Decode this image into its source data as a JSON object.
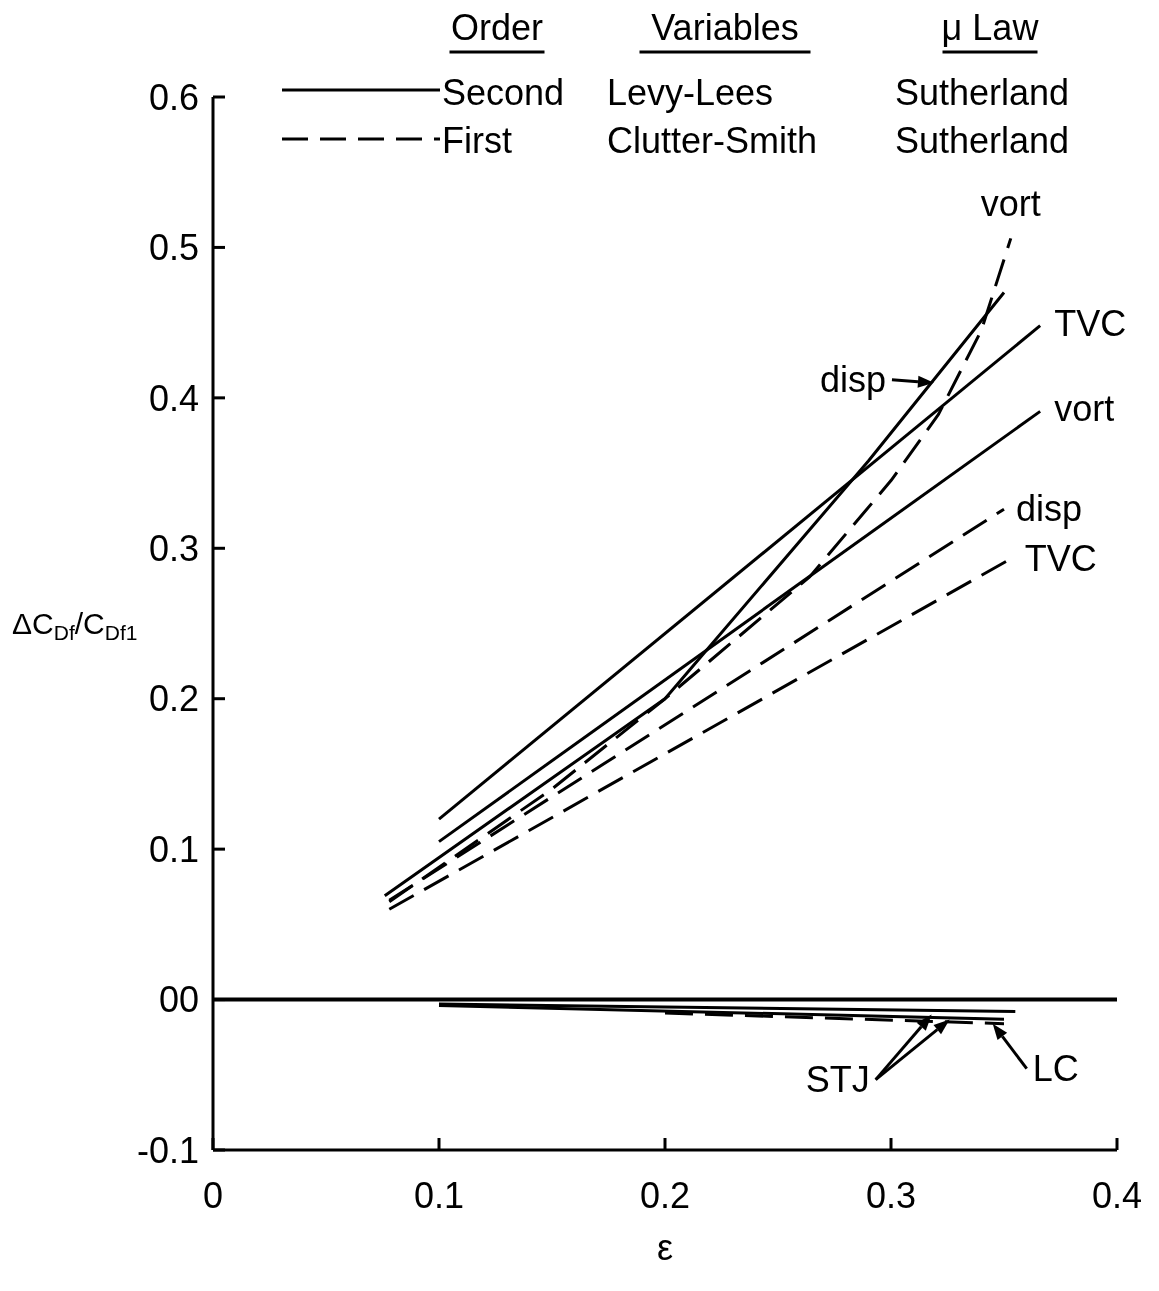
{
  "chart_data": {
    "type": "line",
    "xlabel": "ε",
    "ylabel": "ΔC$_{Df}$/C$_{Df1}$",
    "xlim": [
      0,
      0.4
    ],
    "xticks": [
      0,
      0.1,
      0.2,
      0.3,
      0.4
    ],
    "ylim": [
      -0.1,
      0.6
    ],
    "yticks": [
      -0.1,
      {
        "value": 0,
        "label": "00"
      },
      0.1,
      0.2,
      0.3,
      0.4,
      0.5,
      0.6
    ],
    "ref_lines": [
      {
        "axis": "y",
        "value": 0,
        "color": "#000000"
      }
    ],
    "series": [
      {
        "line_style": "solid",
        "color": "#000000",
        "x": [
          0.1,
          0.366
        ],
        "values": [
          0.12,
          0.448
        ]
      },
      {
        "line_style": "solid",
        "color": "#000000",
        "x": [
          0.1,
          0.366
        ],
        "values": [
          0.105,
          0.391
        ]
      },
      {
        "line_style": "solid",
        "color": "#000000",
        "x": [
          0.076,
          0.2,
          0.29,
          0.35
        ],
        "values": [
          0.069,
          0.2,
          0.358,
          0.47
        ]
      },
      {
        "line_style": "dashed",
        "color": "#000000",
        "x": [
          0.078,
          0.15,
          0.2,
          0.264,
          0.3,
          0.321,
          0.34,
          0.353
        ],
        "values": [
          0.065,
          0.14,
          0.2,
          0.281,
          0.345,
          0.389,
          0.445,
          0.506
        ]
      },
      {
        "line_style": "dashed",
        "color": "#000000",
        "x": [
          0.078,
          0.35
        ],
        "values": [
          0.066,
          0.326
        ]
      },
      {
        "line_style": "dashed",
        "color": "#000000",
        "x": [
          0.078,
          0.353
        ],
        "values": [
          0.06,
          0.293
        ]
      },
      {
        "line_style": "solid",
        "color": "#000000",
        "x": [
          0.1,
          0.355
        ],
        "values": [
          -0.003,
          -0.008
        ]
      },
      {
        "line_style": "solid",
        "color": "#000000",
        "x": [
          0.1,
          0.35
        ],
        "values": [
          -0.004,
          -0.013
        ]
      },
      {
        "line_style": "dashed",
        "color": "#000000",
        "x": [
          0.2,
          0.35
        ],
        "values": [
          -0.009,
          -0.016
        ]
      }
    ],
    "annotations": [
      {
        "text": "vort",
        "x": 0.353,
        "y": 0.506
      },
      {
        "text": "TVC",
        "x": 0.366,
        "y": 0.448
      },
      {
        "text": "disp",
        "x": 0.319,
        "y": 0.412
      },
      {
        "text": "vort",
        "x": 0.366,
        "y": 0.391
      },
      {
        "text": "disp",
        "x": 0.35,
        "y": 0.326
      },
      {
        "text": "TVC",
        "x": 0.353,
        "y": 0.293
      },
      {
        "text": "STJ",
        "x": 0.318,
        "y": -0.008
      },
      {
        "text": "LC",
        "x": 0.345,
        "y": -0.014
      },
      "Order",
      "Variables",
      "μ Law",
      "Second",
      "Levy-Lees",
      "Sutherland",
      "First",
      "Clutter-Smith",
      "Sutherland"
    ]
  }
}
